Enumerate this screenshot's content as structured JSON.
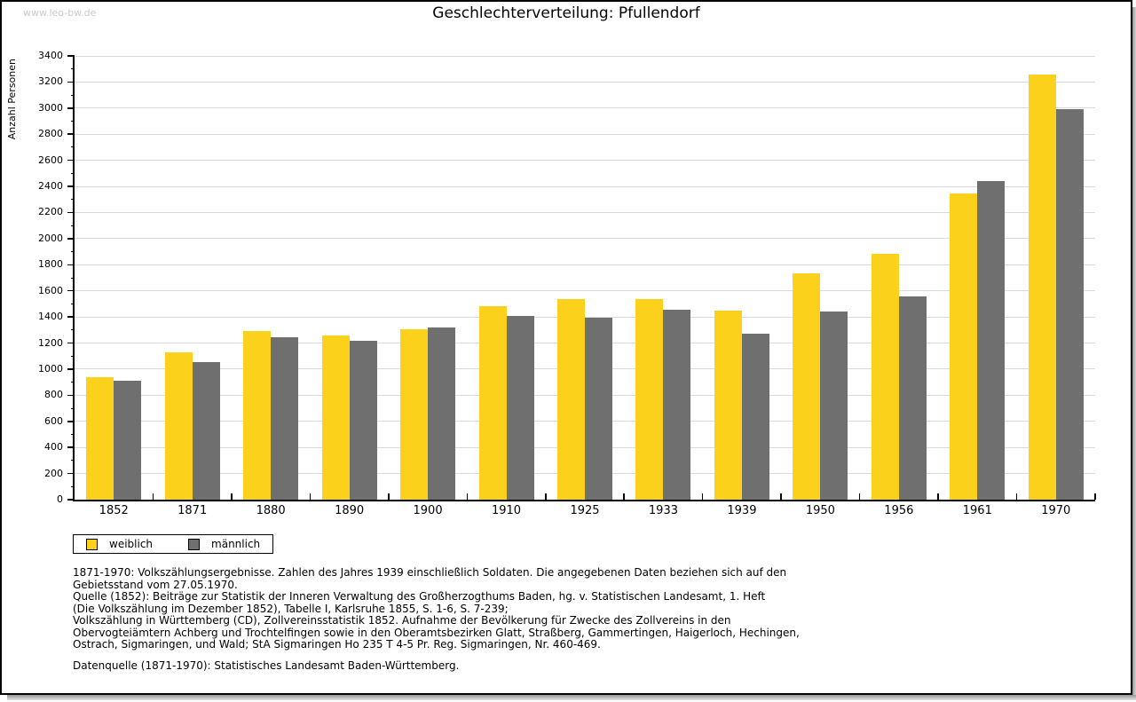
{
  "watermark": "www.leo-bw.de",
  "title": "Geschlechterverteilung: Pfullendorf",
  "chart_data": {
    "type": "bar",
    "title": "Geschlechterverteilung: Pfullendorf",
    "xlabel": "",
    "ylabel": "Anzahl Personen",
    "categories": [
      "1852",
      "1871",
      "1880",
      "1890",
      "1900",
      "1910",
      "1925",
      "1933",
      "1939",
      "1950",
      "1956",
      "1961",
      "1970"
    ],
    "series": [
      {
        "name": "weiblich",
        "color": "#FCD11C",
        "values": [
          940,
          1130,
          1290,
          1260,
          1305,
          1480,
          1540,
          1540,
          1450,
          1735,
          1885,
          2345,
          3260
        ]
      },
      {
        "name": "männlich",
        "color": "#6F6F6F",
        "values": [
          910,
          1055,
          1245,
          1220,
          1320,
          1405,
          1395,
          1455,
          1270,
          1445,
          1555,
          2440,
          2990
        ]
      }
    ],
    "ylim": [
      0,
      3400
    ],
    "ytick_step": 200,
    "yminortick_step": 100,
    "grid": true,
    "legend_position": "bottom-left"
  },
  "legend": {
    "items": [
      {
        "label": "weiblich",
        "color": "#FCD11C"
      },
      {
        "label": "männlich",
        "color": "#6F6F6F"
      }
    ]
  },
  "footnotes": [
    "1871-1970: Volkszählungsergebnisse. Zahlen des Jahres 1939 einschließlich Soldaten. Die angegebenen Daten beziehen sich auf den",
    "Gebietsstand vom 27.05.1970.",
    "Quelle (1852): Beiträge zur Statistik der Inneren Verwaltung des Großherzogthums Baden, hg. v. Statistischen Landesamt, 1. Heft",
    "(Die Volkszählung im Dezember 1852), Tabelle I, Karlsruhe 1855, S. 1-6, S. 7-239;",
    "Volkszählung in Württemberg (CD), Zollvereinsstatistik 1852. Aufnahme der Bevölkerung für Zwecke des Zollvereins in den",
    "Obervogteiämtern Achberg und Trochtelfingen sowie in den Oberamtsbezirken Glatt, Straßberg, Gammertingen, Haigerloch, Hechingen,",
    "Ostrach, Sigmaringen, und Wald; StA Sigmaringen Ho 235 T 4-5 Pr. Reg. Sigmaringen, Nr. 460-469."
  ],
  "datasource": "Datenquelle (1871-1970): Statistisches Landesamt Baden-Württemberg.",
  "colors": {
    "frame_border": "#000000",
    "gridline": "#DADADA",
    "watermark": "#C9C9C9"
  }
}
